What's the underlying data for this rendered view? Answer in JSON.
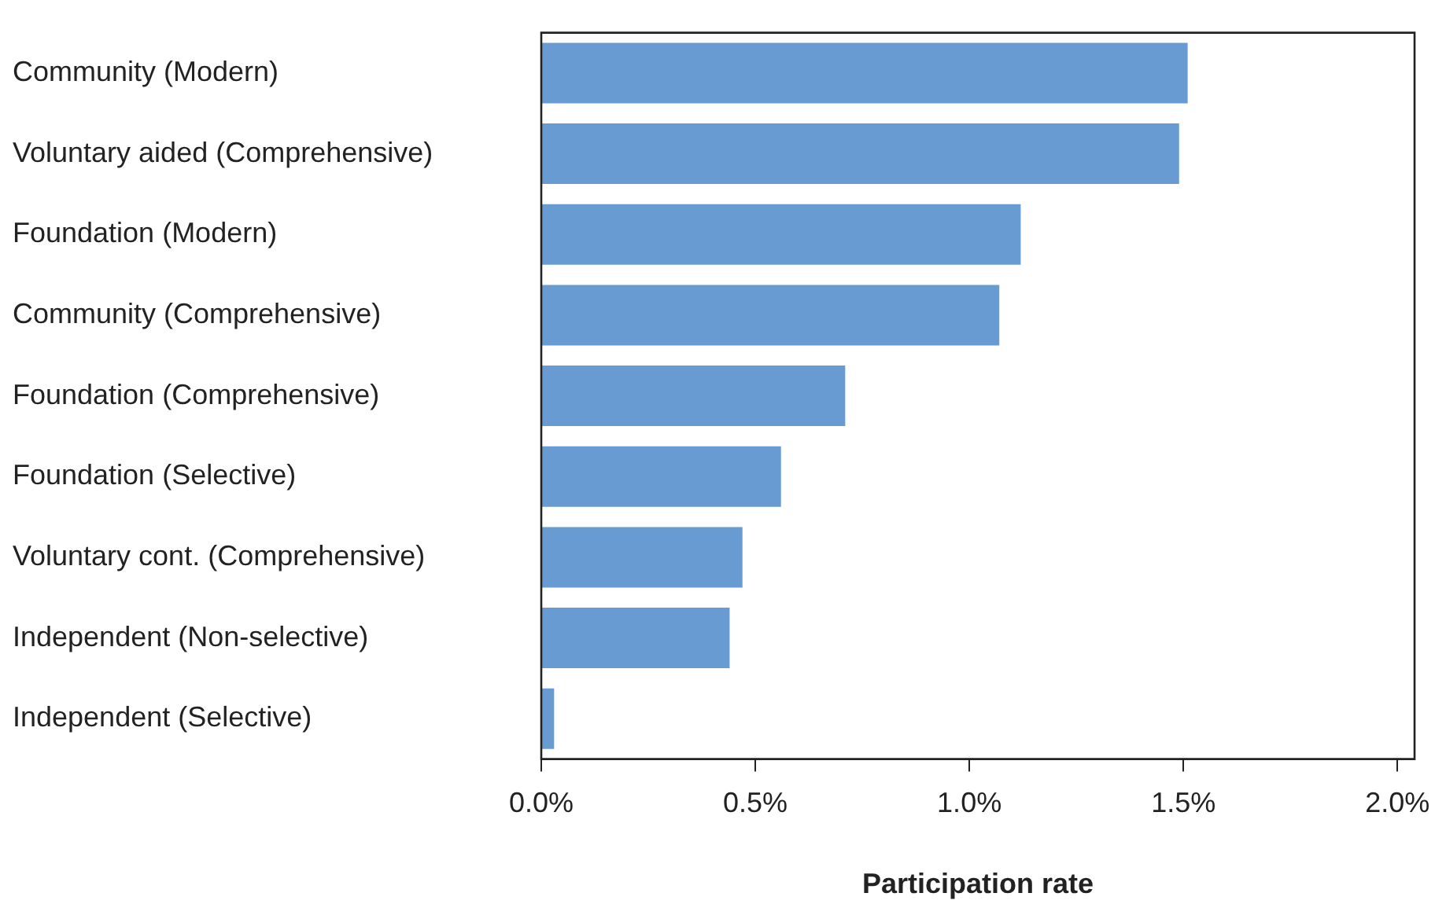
{
  "chart_data": {
    "type": "bar",
    "orientation": "horizontal",
    "xlabel": "Participation rate",
    "categories": [
      "Community (Modern)",
      "Voluntary aided (Comprehensive)",
      "Foundation (Modern)",
      "Community (Comprehensive)",
      "Foundation (Comprehensive)",
      "Foundation (Selective)",
      "Voluntary cont. (Comprehensive)",
      "Independent (Non-selective)",
      "Independent (Selective)"
    ],
    "values": [
      1.51,
      1.49,
      1.12,
      1.07,
      0.71,
      0.56,
      0.47,
      0.44,
      0.03
    ],
    "color": "#689bd2",
    "xlim": [
      0,
      2.04
    ],
    "xticks": [
      {
        "value": 0,
        "label": "0.0%"
      },
      {
        "value": 0.5,
        "label": "0.5%"
      },
      {
        "value": 1,
        "label": "1.0%"
      },
      {
        "value": 1.5,
        "label": "1.5%"
      },
      {
        "value": 2,
        "label": "2.0%"
      }
    ],
    "grid": false,
    "legend": false
  }
}
